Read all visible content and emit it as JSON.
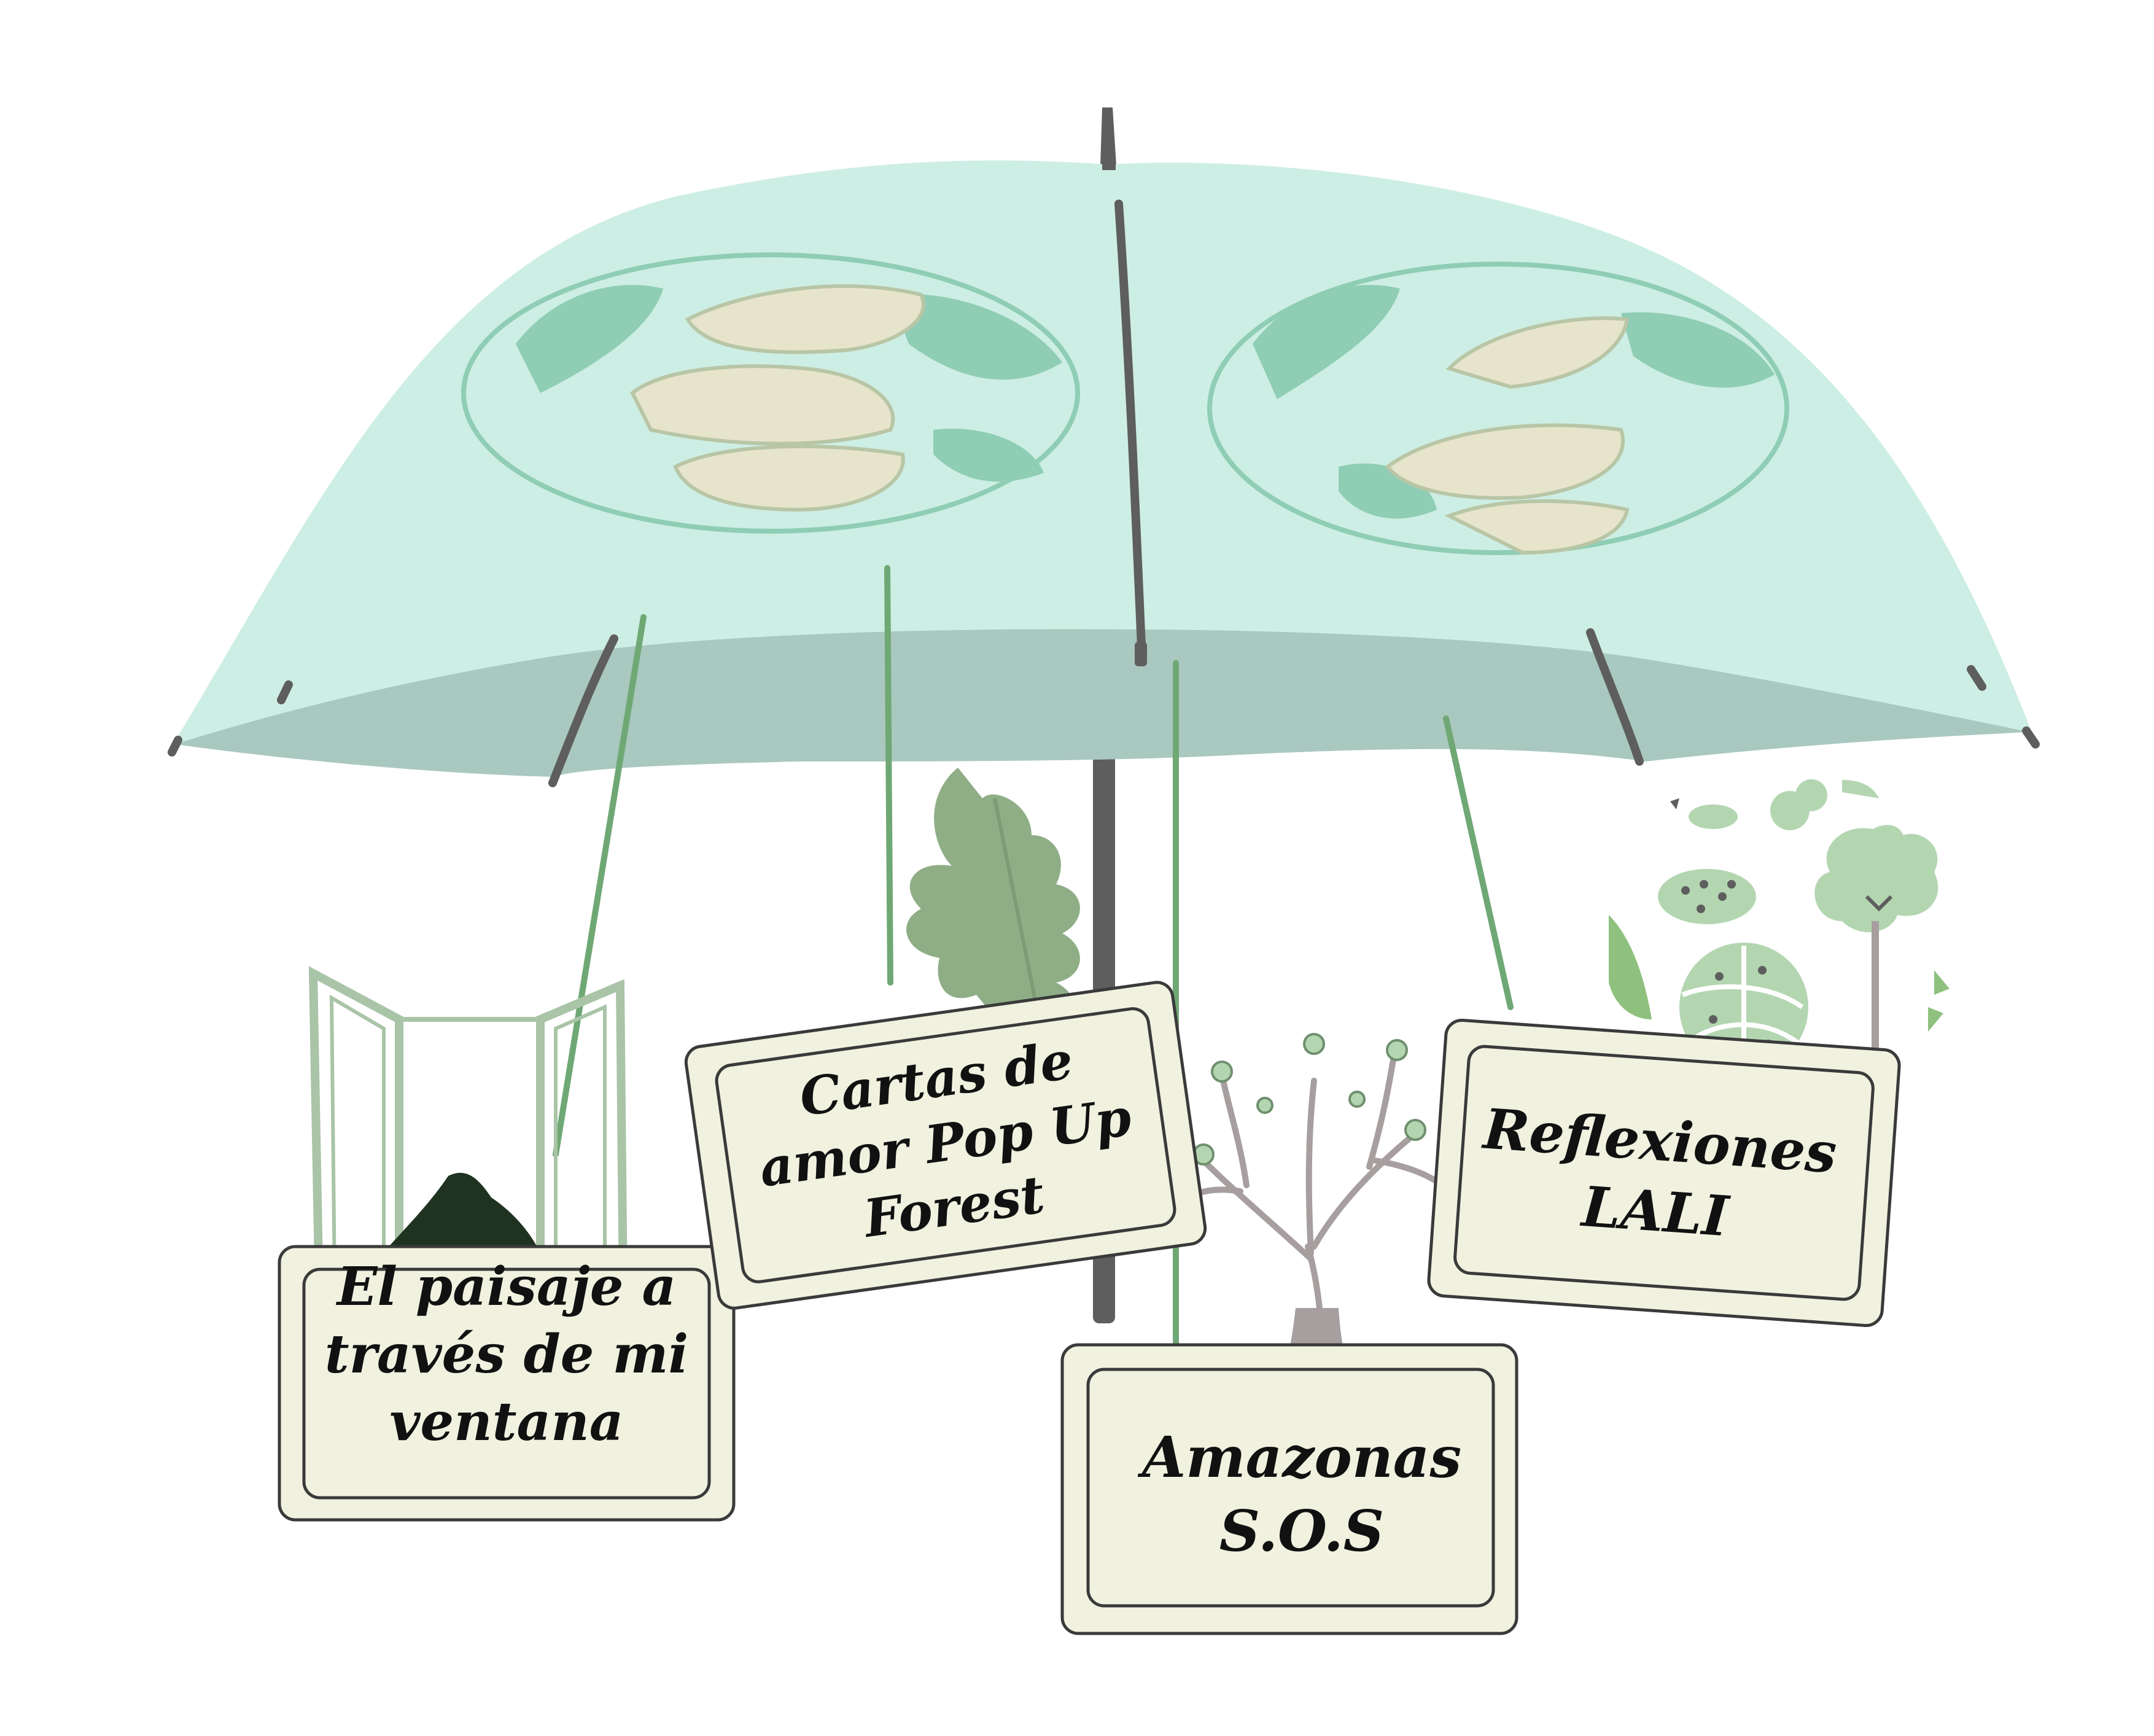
{
  "colors": {
    "canopy": "#cdeee4",
    "canopy_inner": "#a9c8bf",
    "globe": "#8fcdb5",
    "hands": "#e7e4cc",
    "pole": "#5e5e5e",
    "string": "#6fa874",
    "card_fill": "#f1f1e0",
    "card_stroke": "#3a3a3a",
    "leaf": "#8fae86",
    "window": "#a9c4a7",
    "tree_trunk": "#a79f9f",
    "tree_foliage": "#b3d6b1"
  },
  "icons": [
    "window-icon",
    "oak-leaf-icon",
    "tree-icon",
    "plants-icon",
    "globe-hands-icon"
  ],
  "cards": [
    {
      "id": "paisaje",
      "lines": [
        "El paisaje a",
        "través de mi",
        "ventana"
      ]
    },
    {
      "id": "cartas",
      "lines": [
        "Cartas de",
        "amor Pop Up",
        "Forest"
      ]
    },
    {
      "id": "amazonas",
      "lines": [
        "Amazonas",
        "S.O.S"
      ]
    },
    {
      "id": "reflexiones",
      "lines": [
        "Reflexiones",
        "LALI"
      ]
    }
  ]
}
